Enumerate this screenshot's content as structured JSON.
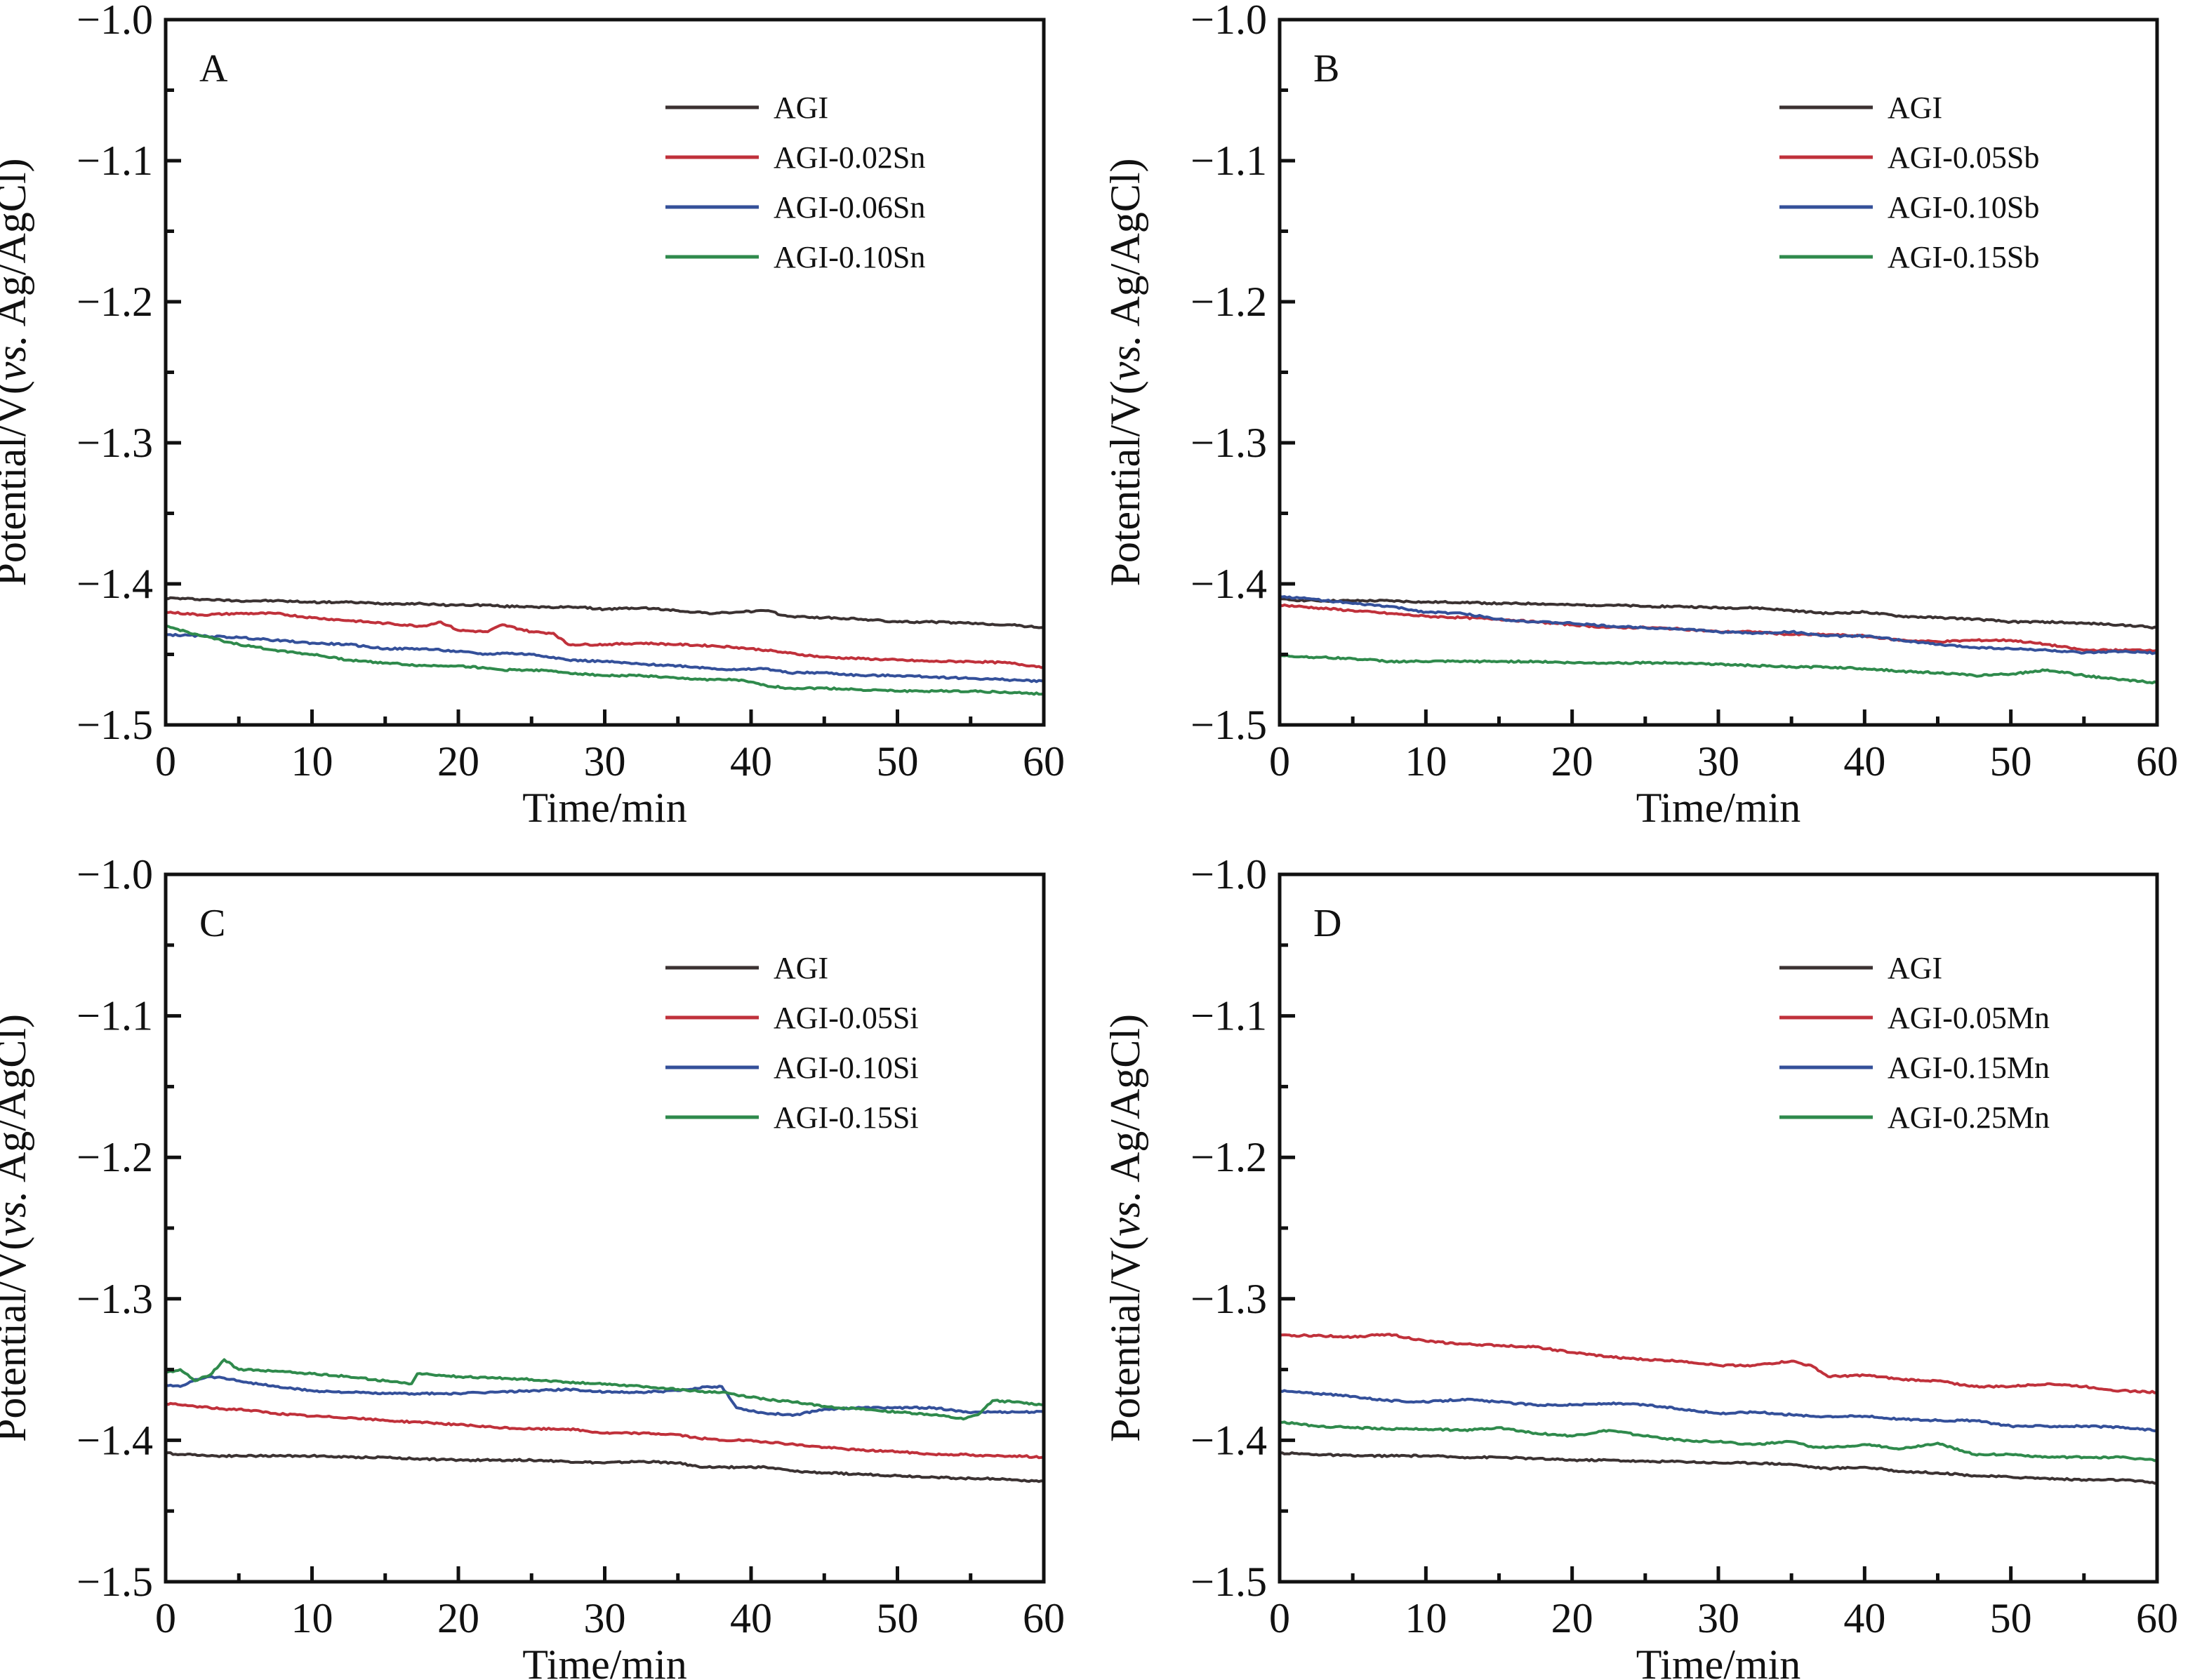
{
  "chart_data": [
    {
      "type": "line",
      "panel": "A",
      "xlabel": "Time/min",
      "ylabel_parts": [
        "Potential/V(",
        "vs.",
        " Ag/AgCl)"
      ],
      "xlim": [
        0,
        60
      ],
      "ylim": [
        -1.5,
        -1.0
      ],
      "xticks": [
        0,
        10,
        20,
        30,
        40,
        50,
        60
      ],
      "yticks": [
        -1.0,
        -1.1,
        -1.2,
        -1.3,
        -1.4,
        -1.5
      ],
      "ytick_labels": [
        "−1.0",
        "−1.1",
        "−1.2",
        "−1.3",
        "−1.4",
        "−1.5"
      ],
      "legend_position": "top-right",
      "grid": false,
      "x": [
        0,
        2.5,
        5,
        7.5,
        10,
        12.5,
        15,
        17.5,
        18.8,
        20,
        22,
        23,
        25,
        26.5,
        27.5,
        30,
        32.5,
        35,
        37.5,
        39,
        41,
        42.5,
        45,
        47.5,
        50,
        52.5,
        55,
        57.5,
        60
      ],
      "series": [
        {
          "name": "AGI",
          "color": "#3b3232",
          "values": [
            -1.41,
            -1.411,
            -1.412,
            -1.412,
            -1.413,
            -1.413,
            -1.414,
            -1.414,
            -1.415,
            -1.415,
            -1.415,
            -1.416,
            -1.416,
            -1.417,
            -1.416,
            -1.418,
            -1.417,
            -1.419,
            -1.421,
            -1.42,
            -1.419,
            -1.423,
            -1.424,
            -1.425,
            -1.427,
            -1.427,
            -1.428,
            -1.429,
            -1.431
          ]
        },
        {
          "name": "AGI-0.02Sn",
          "color": "#c0313b",
          "values": [
            -1.42,
            -1.422,
            -1.421,
            -1.421,
            -1.424,
            -1.426,
            -1.428,
            -1.43,
            -1.427,
            -1.433,
            -1.434,
            -1.429,
            -1.434,
            -1.435,
            -1.443,
            -1.443,
            -1.442,
            -1.443,
            -1.444,
            -1.445,
            -1.447,
            -1.449,
            -1.452,
            -1.453,
            -1.454,
            -1.455,
            -1.455,
            -1.456,
            -1.459
          ]
        },
        {
          "name": "AGI-0.06Sn",
          "color": "#34509a",
          "values": [
            -1.436,
            -1.437,
            -1.438,
            -1.44,
            -1.442,
            -1.443,
            -1.446,
            -1.446,
            -1.447,
            -1.448,
            -1.45,
            -1.449,
            -1.45,
            -1.452,
            -1.454,
            -1.455,
            -1.457,
            -1.458,
            -1.46,
            -1.461,
            -1.46,
            -1.463,
            -1.463,
            -1.465,
            -1.465,
            -1.466,
            -1.467,
            -1.468,
            -1.469
          ]
        },
        {
          "name": "AGI-0.10Sn",
          "color": "#2f8a4c",
          "values": [
            -1.43,
            -1.437,
            -1.443,
            -1.447,
            -1.45,
            -1.454,
            -1.456,
            -1.458,
            -1.458,
            -1.458,
            -1.46,
            -1.461,
            -1.461,
            -1.462,
            -1.463,
            -1.465,
            -1.465,
            -1.467,
            -1.468,
            -1.468,
            -1.472,
            -1.474,
            -1.474,
            -1.475,
            -1.476,
            -1.476,
            -1.476,
            -1.477,
            -1.478
          ]
        }
      ]
    },
    {
      "type": "line",
      "panel": "B",
      "xlabel": "Time/min",
      "ylabel_parts": [
        "Potential/V(",
        "vs.",
        " Ag/AgCl)"
      ],
      "xlim": [
        0,
        60
      ],
      "ylim": [
        -1.5,
        -1.0
      ],
      "xticks": [
        0,
        10,
        20,
        30,
        40,
        50,
        60
      ],
      "yticks": [
        -1.0,
        -1.1,
        -1.2,
        -1.3,
        -1.4,
        -1.5
      ],
      "ytick_labels": [
        "−1.0",
        "−1.1",
        "−1.2",
        "−1.3",
        "−1.4",
        "−1.5"
      ],
      "legend_position": "top-right",
      "grid": false,
      "x": [
        0,
        2.5,
        5,
        7.5,
        10,
        12.5,
        15,
        17.5,
        20,
        22.5,
        25,
        27.5,
        30,
        32.5,
        35,
        37.5,
        40,
        42.5,
        45,
        47.5,
        50,
        52.5,
        55,
        57.5,
        60
      ],
      "series": [
        {
          "name": "AGI",
          "color": "#3b3232",
          "values": [
            -1.411,
            -1.412,
            -1.412,
            -1.412,
            -1.413,
            -1.413,
            -1.414,
            -1.414,
            -1.415,
            -1.415,
            -1.416,
            -1.416,
            -1.417,
            -1.417,
            -1.419,
            -1.421,
            -1.42,
            -1.423,
            -1.424,
            -1.425,
            -1.427,
            -1.427,
            -1.428,
            -1.429,
            -1.431
          ]
        },
        {
          "name": "AGI-0.05Sb",
          "color": "#c0313b",
          "values": [
            -1.415,
            -1.417,
            -1.419,
            -1.421,
            -1.423,
            -1.424,
            -1.425,
            -1.427,
            -1.429,
            -1.431,
            -1.431,
            -1.432,
            -1.434,
            -1.434,
            -1.436,
            -1.436,
            -1.437,
            -1.44,
            -1.441,
            -1.44,
            -1.44,
            -1.443,
            -1.447,
            -1.447,
            -1.447
          ]
        },
        {
          "name": "AGI-0.10Sb",
          "color": "#34509a",
          "values": [
            -1.409,
            -1.411,
            -1.414,
            -1.416,
            -1.42,
            -1.421,
            -1.425,
            -1.427,
            -1.428,
            -1.43,
            -1.431,
            -1.432,
            -1.434,
            -1.435,
            -1.434,
            -1.437,
            -1.437,
            -1.44,
            -1.443,
            -1.445,
            -1.446,
            -1.447,
            -1.449,
            -1.448,
            -1.449
          ]
        },
        {
          "name": "AGI-0.15Sb",
          "color": "#2f8a4c",
          "values": [
            -1.451,
            -1.452,
            -1.453,
            -1.455,
            -1.455,
            -1.455,
            -1.455,
            -1.455,
            -1.456,
            -1.456,
            -1.456,
            -1.456,
            -1.457,
            -1.458,
            -1.459,
            -1.459,
            -1.46,
            -1.462,
            -1.463,
            -1.465,
            -1.464,
            -1.461,
            -1.465,
            -1.468,
            -1.47
          ]
        }
      ]
    },
    {
      "type": "line",
      "panel": "C",
      "xlabel": "Time/min",
      "ylabel_parts": [
        "Potential/V(",
        "vs.",
        " Ag/AgCl)"
      ],
      "xlim": [
        0,
        60
      ],
      "ylim": [
        -1.5,
        -1.0
      ],
      "xticks": [
        0,
        10,
        20,
        30,
        40,
        50,
        60
      ],
      "yticks": [
        -1.0,
        -1.1,
        -1.2,
        -1.3,
        -1.4,
        -1.5
      ],
      "ytick_labels": [
        "−1.0",
        "−1.1",
        "−1.2",
        "−1.3",
        "−1.4",
        "−1.5"
      ],
      "legend_position": "top-right",
      "grid": false,
      "x": [
        0,
        1,
        2,
        3,
        4,
        5,
        7.5,
        10,
        12.5,
        15,
        16.8,
        17.2,
        20,
        22.5,
        25,
        27.5,
        30,
        32.5,
        35,
        36,
        37,
        38,
        39,
        41,
        43,
        45,
        47.5,
        50,
        52.5,
        54.5,
        55.5,
        56.5,
        58,
        60
      ],
      "series": [
        {
          "name": "AGI",
          "color": "#3b3232",
          "values": [
            -1.409,
            -1.41,
            -1.41,
            -1.411,
            -1.411,
            -1.411,
            -1.411,
            -1.411,
            -1.412,
            -1.412,
            -1.413,
            -1.413,
            -1.414,
            -1.414,
            -1.414,
            -1.415,
            -1.416,
            -1.415,
            -1.416,
            -1.418,
            -1.419,
            -1.419,
            -1.419,
            -1.419,
            -1.422,
            -1.423,
            -1.424,
            -1.425,
            -1.426,
            -1.427,
            -1.427,
            -1.427,
            -1.428,
            -1.429
          ]
        },
        {
          "name": "AGI-0.05Si",
          "color": "#c0313b",
          "values": [
            -1.374,
            -1.375,
            -1.376,
            -1.377,
            -1.378,
            -1.378,
            -1.381,
            -1.383,
            -1.384,
            -1.386,
            -1.387,
            -1.387,
            -1.389,
            -1.391,
            -1.392,
            -1.392,
            -1.395,
            -1.395,
            -1.396,
            -1.398,
            -1.399,
            -1.4,
            -1.4,
            -1.401,
            -1.403,
            -1.405,
            -1.407,
            -1.408,
            -1.41,
            -1.41,
            -1.411,
            -1.411,
            -1.411,
            -1.412
          ]
        },
        {
          "name": "AGI-0.10Si",
          "color": "#34509a",
          "values": [
            -1.361,
            -1.362,
            -1.357,
            -1.355,
            -1.356,
            -1.358,
            -1.362,
            -1.365,
            -1.366,
            -1.367,
            -1.367,
            -1.367,
            -1.367,
            -1.366,
            -1.365,
            -1.364,
            -1.366,
            -1.366,
            -1.365,
            -1.364,
            -1.362,
            -1.362,
            -1.377,
            -1.381,
            -1.382,
            -1.378,
            -1.377,
            -1.377,
            -1.377,
            -1.38,
            -1.38,
            -1.38,
            -1.38,
            -1.38
          ]
        },
        {
          "name": "AGI-0.15Si",
          "color": "#2f8a4c",
          "values": [
            -1.352,
            -1.35,
            -1.358,
            -1.354,
            -1.343,
            -1.35,
            -1.351,
            -1.353,
            -1.355,
            -1.358,
            -1.36,
            -1.353,
            -1.355,
            -1.356,
            -1.357,
            -1.359,
            -1.36,
            -1.362,
            -1.364,
            -1.365,
            -1.366,
            -1.366,
            -1.368,
            -1.371,
            -1.373,
            -1.376,
            -1.378,
            -1.38,
            -1.382,
            -1.385,
            -1.382,
            -1.372,
            -1.373,
            -1.375
          ]
        }
      ]
    },
    {
      "type": "line",
      "panel": "D",
      "xlabel": "Time/min",
      "ylabel_parts": [
        "Potential/V(",
        "vs.",
        " Ag/AgCl)"
      ],
      "xlim": [
        0,
        60
      ],
      "ylim": [
        -1.5,
        -1.0
      ],
      "xticks": [
        0,
        10,
        20,
        30,
        40,
        50,
        60
      ],
      "yticks": [
        -1.0,
        -1.1,
        -1.2,
        -1.3,
        -1.4,
        -1.5
      ],
      "ytick_labels": [
        "−1.0",
        "−1.1",
        "−1.2",
        "−1.3",
        "−1.4",
        "−1.5"
      ],
      "legend_position": "top-right",
      "grid": false,
      "x": [
        0,
        2.5,
        5,
        7.5,
        10,
        12.5,
        15,
        17.5,
        20,
        22.5,
        25,
        27.5,
        30,
        32.5,
        35,
        36.5,
        37.5,
        40,
        42.5,
        45,
        47.5,
        50,
        52.5,
        55,
        57.5,
        60
      ],
      "series": [
        {
          "name": "AGI",
          "color": "#3b3232",
          "values": [
            -1.409,
            -1.41,
            -1.411,
            -1.411,
            -1.411,
            -1.412,
            -1.412,
            -1.413,
            -1.414,
            -1.414,
            -1.415,
            -1.415,
            -1.416,
            -1.416,
            -1.417,
            -1.419,
            -1.42,
            -1.419,
            -1.422,
            -1.423,
            -1.425,
            -1.426,
            -1.427,
            -1.428,
            -1.428,
            -1.43
          ]
        },
        {
          "name": "AGI-0.05Mn",
          "color": "#c0313b",
          "values": [
            -1.326,
            -1.326,
            -1.327,
            -1.325,
            -1.33,
            -1.332,
            -1.333,
            -1.334,
            -1.338,
            -1.341,
            -1.343,
            -1.344,
            -1.347,
            -1.347,
            -1.344,
            -1.348,
            -1.355,
            -1.354,
            -1.357,
            -1.358,
            -1.362,
            -1.362,
            -1.36,
            -1.362,
            -1.365,
            -1.366
          ]
        },
        {
          "name": "AGI-0.15Mn",
          "color": "#34509a",
          "values": [
            -1.365,
            -1.367,
            -1.369,
            -1.372,
            -1.373,
            -1.371,
            -1.373,
            -1.375,
            -1.375,
            -1.374,
            -1.375,
            -1.378,
            -1.381,
            -1.38,
            -1.382,
            -1.383,
            -1.383,
            -1.383,
            -1.385,
            -1.386,
            -1.386,
            -1.39,
            -1.39,
            -1.39,
            -1.391,
            -1.393
          ]
        },
        {
          "name": "AGI-0.25Mn",
          "color": "#2f8a4c",
          "values": [
            -1.387,
            -1.39,
            -1.391,
            -1.392,
            -1.392,
            -1.393,
            -1.391,
            -1.395,
            -1.397,
            -1.393,
            -1.397,
            -1.4,
            -1.401,
            -1.403,
            -1.401,
            -1.405,
            -1.405,
            -1.403,
            -1.406,
            -1.402,
            -1.41,
            -1.41,
            -1.412,
            -1.412,
            -1.412,
            -1.414
          ]
        }
      ]
    }
  ]
}
